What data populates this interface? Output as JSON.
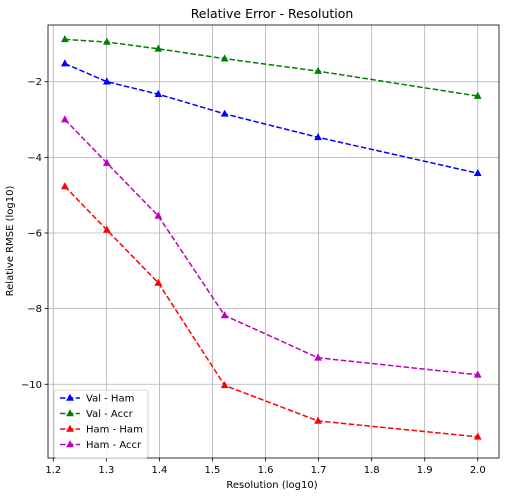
{
  "chart_data": {
    "type": "line",
    "title": "Relative Error - Resolution",
    "xlabel": "Resolution (log10)",
    "ylabel": "Relative RMSE (log10)",
    "xlim": [
      1.19,
      2.04
    ],
    "ylim": [
      -11.95,
      -0.5
    ],
    "grid": true,
    "legend_position": "lower-left",
    "x": [
      1.2218,
      1.301,
      1.3979,
      1.5229,
      1.699,
      2.0
    ],
    "x_ticks": [
      1.2,
      1.3,
      1.4,
      1.5,
      1.6,
      1.7,
      1.8,
      1.9,
      2.0
    ],
    "x_tick_labels": [
      "1.2",
      "1.3",
      "1.4",
      "1.5",
      "1.6",
      "1.7",
      "1.8",
      "1.9",
      "2.0"
    ],
    "y_ticks": [
      -10,
      -8,
      -6,
      -4,
      -2
    ],
    "y_tick_labels": [
      "−10",
      "−8",
      "−6",
      "−4",
      "−2"
    ],
    "series": [
      {
        "name": "Val - Ham",
        "color": "#0000ff",
        "values": [
          -1.52,
          -2.0,
          -2.33,
          -2.85,
          -3.47,
          -4.42
        ]
      },
      {
        "name": "Val - Accr",
        "color": "#008000",
        "values": [
          -0.88,
          -0.95,
          -1.13,
          -1.39,
          -1.72,
          -2.38
        ]
      },
      {
        "name": "Ham - Ham",
        "color": "#ff0000",
        "values": [
          -4.77,
          -5.92,
          -7.32,
          -10.03,
          -10.97,
          -11.39
        ]
      },
      {
        "name": "Ham - Accr",
        "color": "#bf00bf",
        "values": [
          -3.0,
          -4.15,
          -5.55,
          -8.18,
          -9.3,
          -9.75
        ]
      }
    ]
  }
}
